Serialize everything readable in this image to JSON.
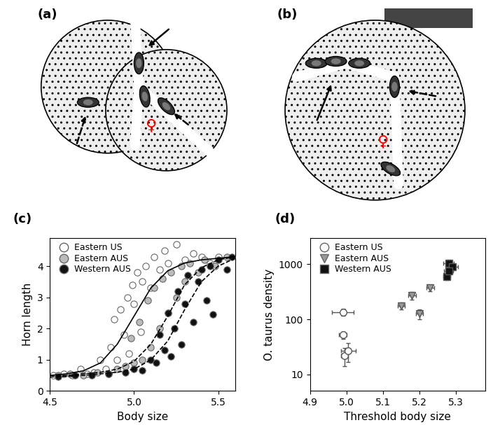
{
  "chart_data": [
    {
      "type": "diagram",
      "title": "(a)",
      "annotations": [
        "♀"
      ]
    },
    {
      "type": "diagram",
      "title": "(b)",
      "annotations": [
        "♀"
      ]
    },
    {
      "type": "scatter",
      "title": "(c)",
      "x_label": "Body size",
      "y_label": "Horn length",
      "xlim": [
        4.5,
        5.6
      ],
      "xticks": [
        4.5,
        5.0,
        5.5
      ],
      "ylim": [
        0,
        4.9
      ],
      "yticks": [
        0,
        1,
        2,
        3,
        4
      ],
      "legend": "upper left",
      "series": [
        {
          "name": "Eastern US",
          "color": "#ffffff",
          "marker": "circle",
          "line_style": "solid",
          "x": [
            4.52,
            4.58,
            4.63,
            4.68,
            4.72,
            4.76,
            4.8,
            4.83,
            4.86,
            4.88,
            4.9,
            4.92,
            4.94,
            4.96,
            4.97,
            4.99,
            5.0,
            5.02,
            5.04,
            5.05,
            5.07,
            5.1,
            5.12,
            5.15,
            5.18,
            5.2,
            5.25,
            5.3,
            5.35,
            5.4,
            5.45,
            5.5
          ],
          "values": [
            0.5,
            0.55,
            0.5,
            0.7,
            0.55,
            0.6,
            1.0,
            0.7,
            1.4,
            2.3,
            1.0,
            2.6,
            1.8,
            3.0,
            1.2,
            3.4,
            2.8,
            3.8,
            1.9,
            3.5,
            4.0,
            3.3,
            4.3,
            3.9,
            4.5,
            4.1,
            4.7,
            4.2,
            4.4,
            4.3,
            4.1,
            4.3
          ],
          "fit_x": [
            4.5,
            4.6,
            4.7,
            4.8,
            4.9,
            5.0,
            5.1,
            5.2,
            5.3,
            5.4,
            5.5,
            5.6
          ],
          "fit_values": [
            0.5,
            0.55,
            0.65,
            0.9,
            1.5,
            2.4,
            3.3,
            3.85,
            4.1,
            4.2,
            4.25,
            4.3
          ]
        },
        {
          "name": "Eastern AUS",
          "color": "#bbbbbb",
          "marker": "circle",
          "line_style": "dashed",
          "x": [
            4.55,
            4.62,
            4.7,
            4.78,
            4.85,
            4.9,
            4.95,
            4.98,
            5.0,
            5.03,
            5.05,
            5.08,
            5.1,
            5.12,
            5.15,
            5.17,
            5.2,
            5.22,
            5.25,
            5.28,
            5.3,
            5.33,
            5.38,
            5.42,
            5.48,
            5.55
          ],
          "values": [
            0.5,
            0.55,
            0.5,
            0.6,
            0.55,
            0.7,
            0.8,
            1.7,
            0.9,
            2.2,
            1.0,
            2.9,
            1.4,
            3.3,
            2.0,
            3.6,
            2.5,
            3.8,
            3.0,
            4.0,
            3.5,
            4.1,
            3.8,
            4.2,
            4.0,
            4.3
          ],
          "fit_x": [
            4.5,
            4.6,
            4.7,
            4.8,
            4.9,
            5.0,
            5.1,
            5.2,
            5.3,
            5.4,
            5.5,
            5.6
          ],
          "fit_values": [
            0.5,
            0.5,
            0.55,
            0.6,
            0.7,
            0.95,
            1.5,
            2.4,
            3.4,
            3.95,
            4.2,
            4.3
          ]
        },
        {
          "name": "Western AUS",
          "color": "#111111",
          "marker": "circle",
          "line_style": "dashed",
          "x": [
            4.55,
            4.65,
            4.75,
            4.85,
            4.95,
            5.0,
            5.05,
            5.1,
            5.13,
            5.15,
            5.18,
            5.2,
            5.22,
            5.24,
            5.26,
            5.28,
            5.3,
            5.32,
            5.35,
            5.38,
            5.4,
            5.43,
            5.45,
            5.47,
            5.5,
            5.55,
            5.58
          ],
          "values": [
            0.45,
            0.5,
            0.5,
            0.55,
            0.6,
            0.7,
            0.65,
            1.0,
            0.9,
            1.8,
            1.3,
            2.5,
            1.1,
            2.0,
            3.2,
            1.5,
            2.8,
            3.7,
            2.2,
            3.5,
            3.9,
            2.9,
            4.0,
            2.45,
            4.2,
            3.9,
            4.3
          ],
          "fit_x": [
            4.5,
            4.6,
            4.7,
            4.8,
            4.9,
            5.0,
            5.1,
            5.2,
            5.3,
            5.4,
            5.5,
            5.6
          ],
          "fit_values": [
            0.45,
            0.47,
            0.5,
            0.55,
            0.6,
            0.7,
            1.0,
            1.6,
            2.6,
            3.5,
            4.0,
            4.25
          ]
        }
      ]
    },
    {
      "type": "errorbar",
      "title": "(d)",
      "x_label": "Threshold body size",
      "y_label": "O. taurus density",
      "log": "y",
      "xlim": [
        4.9,
        5.38
      ],
      "xticks": [
        4.9,
        5.0,
        5.1,
        5.2,
        5.3
      ],
      "ylim": [
        5,
        3000
      ],
      "yticks": [
        10,
        100,
        1000
      ],
      "legend": "upper left",
      "series": [
        {
          "name": "Eastern US",
          "color": "#ffffff",
          "marker": "circle",
          "x": [
            4.99,
            4.99,
            4.995,
            5.005
          ],
          "values": [
            135,
            52,
            22,
            27
          ],
          "xerr": [
            0.03,
            0.01,
            0.01,
            0.02
          ],
          "yerr": [
            20,
            8,
            8,
            10
          ]
        },
        {
          "name": "Eastern AUS",
          "color": "#999999",
          "marker": "triangle_down",
          "x": [
            5.15,
            5.18,
            5.2,
            5.23
          ],
          "values": [
            175,
            270,
            125,
            370
          ],
          "xerr": [
            0.01,
            0.01,
            0.01,
            0.01
          ],
          "yerr": [
            25,
            40,
            25,
            50
          ]
        },
        {
          "name": "Western AUS",
          "color": "#111111",
          "marker": "square",
          "x": [
            5.28,
            5.29,
            5.275,
            5.28
          ],
          "values": [
            1050,
            900,
            600,
            750
          ],
          "xerr": [
            0.015,
            0.015,
            0.01,
            0.012
          ],
          "yerr": [
            150,
            120,
            80,
            100
          ]
        }
      ]
    }
  ]
}
